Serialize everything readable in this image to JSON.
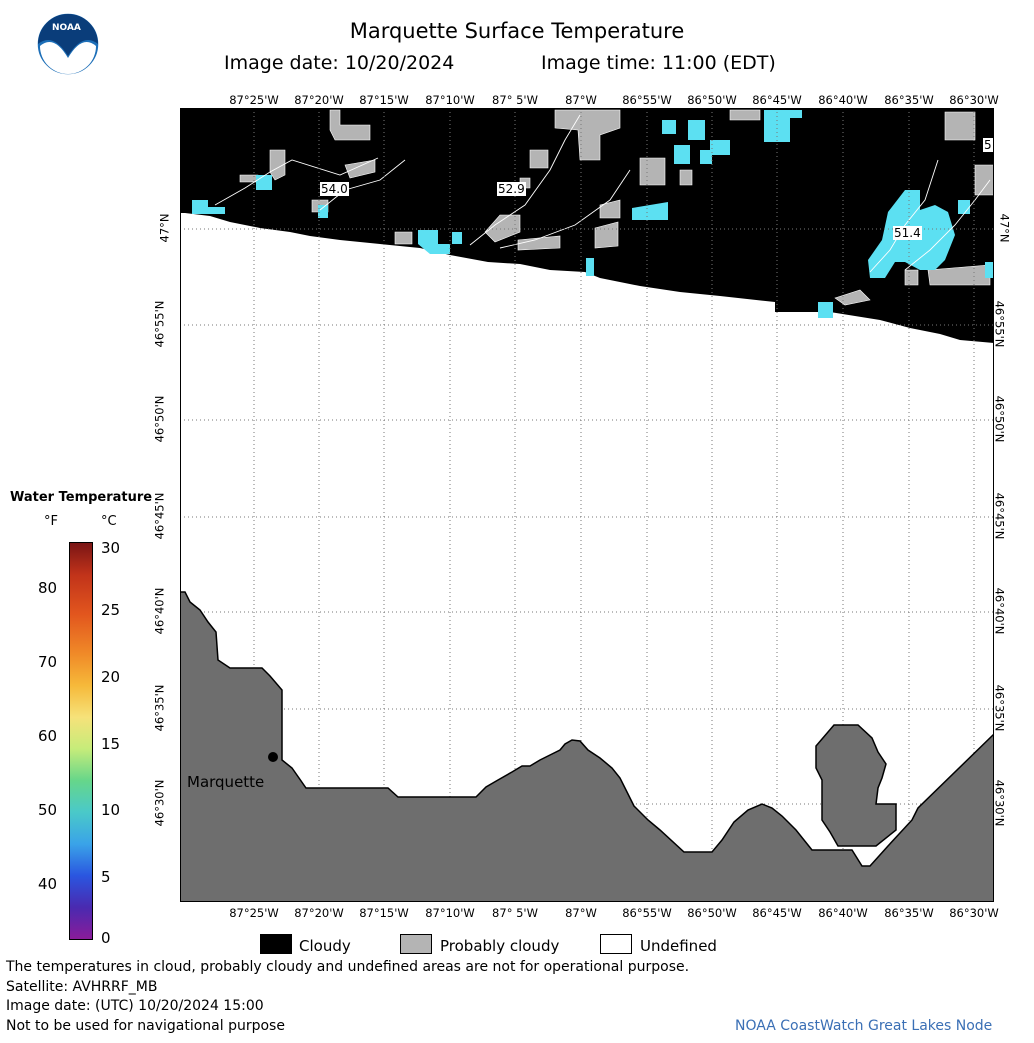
{
  "header": {
    "title": "Marquette Surface Temperature",
    "image_date": "Image date: 10/20/2024",
    "image_time": "Image time: 11:00 (EDT)"
  },
  "logo": {
    "text": "NOAA"
  },
  "map": {
    "lon_labels": [
      "87°25'W",
      "87°20'W",
      "87°15'W",
      "87°10'W",
      "87° 5'W",
      "87°W",
      "86°55'W",
      "86°50'W",
      "86°45'W",
      "86°40'W",
      "86°35'W",
      "86°30'W"
    ],
    "lat_labels": [
      "47°N",
      "46°55'N",
      "46°50'N",
      "46°45'N",
      "46°40'N",
      "46°35'N",
      "46°30'N"
    ],
    "temp_labels": [
      {
        "id": "t1",
        "text": "54.0"
      },
      {
        "id": "t2",
        "text": "52.9"
      },
      {
        "id": "t3",
        "text": "51.4"
      },
      {
        "id": "t4",
        "text": "5"
      }
    ],
    "city": "Marquette",
    "colors": {
      "cloud": "#000000",
      "probably_cloudy": "#b4b4b4",
      "land": "#6e6e6e",
      "water_50f": "#5ce0f2",
      "undefined": "#ffffff"
    }
  },
  "legend": {
    "title": "Water Temperature",
    "unit_f": "°F",
    "unit_c": "°C",
    "f_ticks": [
      "80",
      "70",
      "60",
      "50",
      "40"
    ],
    "c_ticks": [
      "30",
      "25",
      "20",
      "15",
      "10",
      "5",
      "0"
    ]
  },
  "key": {
    "cloudy": "Cloudy",
    "probably_cloudy": "Probably cloudy",
    "undefined": "Undefined"
  },
  "footer": {
    "line1": "The temperatures in cloud, probably cloudy and undefined areas are not for operational purpose.",
    "line2": "Satellite: AVHRRF_MB",
    "line3": "Image date: (UTC) 10/20/2024  15:00",
    "line4": "Not to be used for navigational purpose",
    "credit": "NOAA CoastWatch Great Lakes Node"
  }
}
